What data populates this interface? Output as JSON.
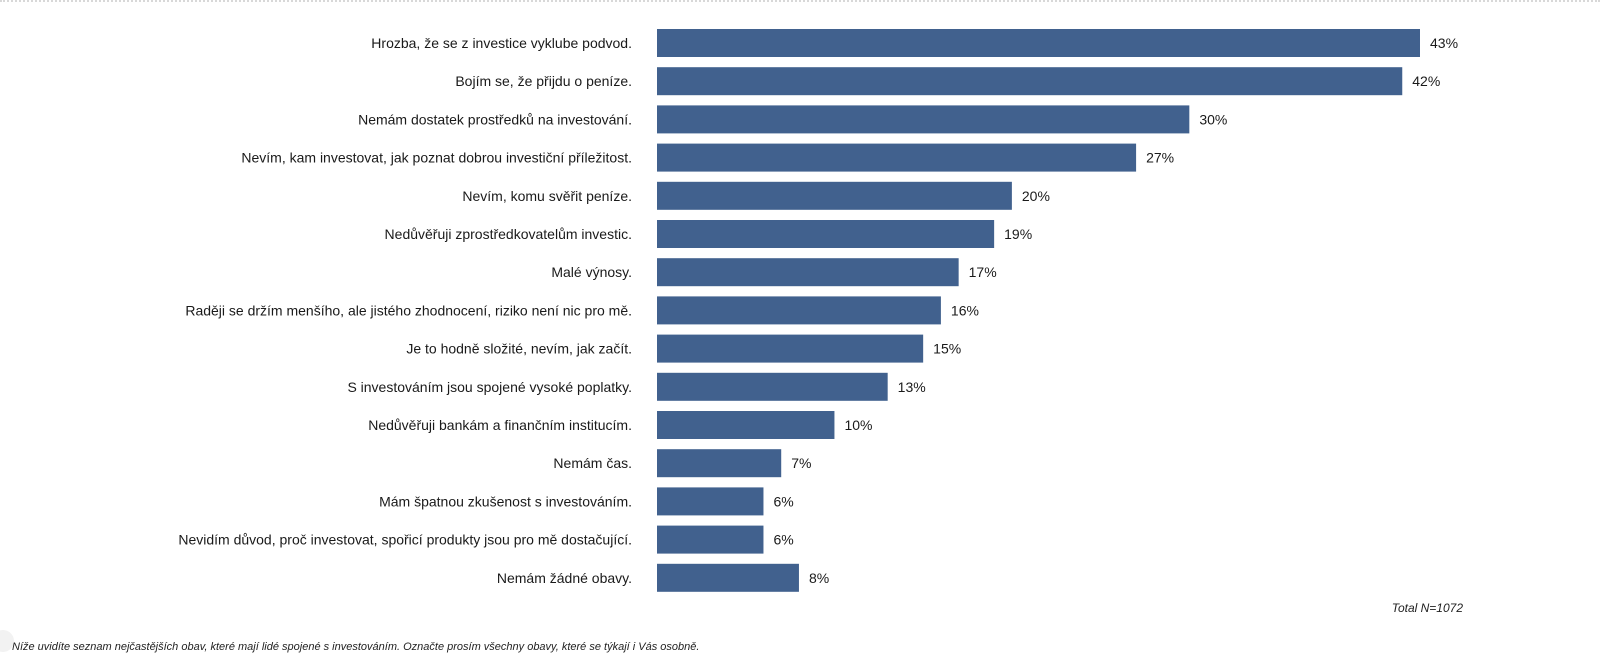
{
  "chart_data": {
    "type": "bar",
    "orientation": "horizontal",
    "categories": [
      "Hrozba, že se z investice vyklube podvod.",
      "Bojím se, že přijdu o peníze.",
      "Nemám dostatek prostředků na investování.",
      "Nevím, kam investovat, jak poznat dobrou investiční příležitost.",
      "Nevím, komu svěřit peníze.",
      "Nedůvěřuji zprostředkovatelům investic.",
      "Malé výnosy.",
      "Raději se držím menšího, ale jistého zhodnocení, riziko není nic pro mě.",
      "Je to hodně složité, nevím, jak začít.",
      "S investováním jsou spojené vysoké poplatky.",
      "Nedůvěřuji bankám a finančním institucím.",
      "Nemám čas.",
      "Mám špatnou zkušenost s investováním.",
      "Nevidím důvod, proč investovat, spořicí produkty jsou pro mě dostačující.",
      "Nemám žádné obavy."
    ],
    "values": [
      43,
      42,
      30,
      27,
      20,
      19,
      17,
      16,
      15,
      13,
      10,
      7,
      6,
      6,
      8
    ],
    "value_labels": [
      "43%",
      "42%",
      "30%",
      "27%",
      "20%",
      "19%",
      "17%",
      "16%",
      "15%",
      "13%",
      "10%",
      "7%",
      "6%",
      "6%",
      "8%"
    ],
    "unit": "%",
    "xlim": [
      0,
      43
    ],
    "bar_color": "#41618e",
    "grid": false,
    "legend": "none"
  },
  "notes": {
    "total": "Total N=1072",
    "question": "Níže uvidíte seznam nejčastějších obav, které mají lidé spojené s investováním. Označte prosím všechny obavy, které se týkají i Vás osobně."
  }
}
